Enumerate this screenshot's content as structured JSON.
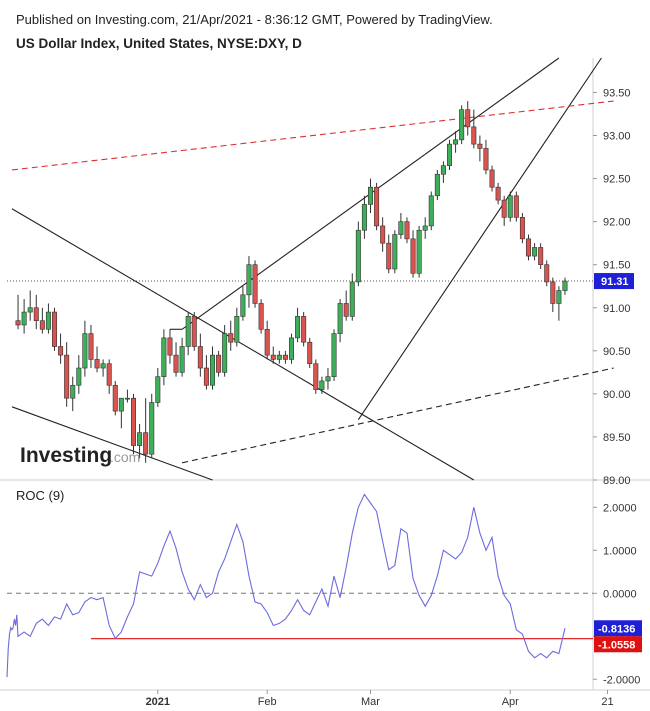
{
  "header": {
    "published": "Published on Investing.com, 21/Apr/2021 - 8:36:12 GMT, Powered by TradingView.",
    "title": "US Dollar Index, United States, NYSE:DXY, D"
  },
  "logo": {
    "main": "Investing",
    "suffix": ".com"
  },
  "colors": {
    "up": "#3fae5a",
    "down": "#d9534f",
    "roc": "#6b6be0",
    "trend": "#222222",
    "resistance": "#e03030",
    "last_label": "#1f1fd6",
    "roc_label_blue": "#1f1fd6",
    "roc_label_red": "#e01010"
  },
  "chart_data": [
    {
      "type": "candlestick",
      "title": "US Dollar Index, United States, NYSE:DXY, D",
      "ylim": [
        89.0,
        93.9
      ],
      "y_ticks": [
        "93.50",
        "93.00",
        "92.50",
        "92.00",
        "91.50",
        "91.00",
        "90.50",
        "90.00",
        "89.50",
        "89.00"
      ],
      "x_ticks": [
        "2021",
        "Feb",
        "Mar",
        "Apr",
        "21"
      ],
      "last_price": "91.31",
      "candles": [
        [
          90.85,
          91.15,
          90.75,
          90.8
        ],
        [
          90.8,
          91.1,
          90.7,
          90.95
        ],
        [
          90.95,
          91.2,
          90.85,
          91.0
        ],
        [
          91.0,
          91.15,
          90.75,
          90.85
        ],
        [
          90.85,
          91.0,
          90.7,
          90.75
        ],
        [
          90.75,
          91.05,
          90.7,
          90.95
        ],
        [
          90.95,
          91.0,
          90.5,
          90.55
        ],
        [
          90.55,
          90.7,
          90.35,
          90.45
        ],
        [
          90.45,
          90.6,
          89.85,
          89.95
        ],
        [
          89.95,
          90.2,
          89.8,
          90.1
        ],
        [
          90.1,
          90.45,
          90.0,
          90.3
        ],
        [
          90.3,
          90.85,
          90.2,
          90.7
        ],
        [
          90.7,
          90.8,
          90.3,
          90.4
        ],
        [
          90.4,
          90.55,
          90.25,
          90.3
        ],
        [
          90.3,
          90.4,
          90.2,
          90.35
        ],
        [
          90.35,
          90.4,
          90.0,
          90.1
        ],
        [
          90.1,
          90.15,
          89.75,
          89.8
        ],
        [
          89.8,
          89.95,
          89.6,
          89.95
        ],
        [
          89.95,
          90.05,
          89.9,
          89.95
        ],
        [
          89.95,
          90.0,
          89.3,
          89.4
        ],
        [
          89.4,
          89.65,
          89.25,
          89.55
        ],
        [
          89.55,
          89.95,
          89.2,
          89.3
        ],
        [
          89.3,
          90.0,
          89.25,
          89.9
        ],
        [
          89.9,
          90.3,
          89.85,
          90.2
        ],
        [
          90.2,
          90.75,
          90.1,
          90.65
        ],
        [
          90.65,
          90.75,
          90.35,
          90.45
        ],
        [
          90.45,
          90.6,
          90.2,
          90.25
        ],
        [
          90.25,
          90.65,
          90.2,
          90.55
        ],
        [
          90.55,
          90.95,
          90.45,
          90.9
        ],
        [
          90.9,
          90.95,
          90.5,
          90.55
        ],
        [
          90.55,
          90.7,
          90.2,
          90.3
        ],
        [
          90.3,
          90.45,
          90.05,
          90.1
        ],
        [
          90.1,
          90.55,
          90.05,
          90.45
        ],
        [
          90.45,
          90.5,
          90.2,
          90.25
        ],
        [
          90.25,
          90.8,
          90.2,
          90.7
        ],
        [
          90.7,
          90.85,
          90.5,
          90.6
        ],
        [
          90.6,
          91.0,
          90.55,
          90.9
        ],
        [
          90.9,
          91.25,
          90.85,
          91.15
        ],
        [
          91.15,
          91.6,
          91.0,
          91.5
        ],
        [
          91.5,
          91.55,
          91.0,
          91.05
        ],
        [
          91.05,
          91.1,
          90.7,
          90.75
        ],
        [
          90.75,
          90.85,
          90.4,
          90.45
        ],
        [
          90.45,
          90.55,
          90.35,
          90.4
        ],
        [
          90.4,
          90.5,
          90.35,
          90.45
        ],
        [
          90.45,
          90.5,
          90.35,
          90.4
        ],
        [
          90.4,
          90.7,
          90.35,
          90.65
        ],
        [
          90.65,
          91.0,
          90.6,
          90.9
        ],
        [
          90.9,
          90.95,
          90.55,
          90.6
        ],
        [
          90.6,
          90.65,
          90.3,
          90.35
        ],
        [
          90.35,
          90.4,
          90.0,
          90.05
        ],
        [
          90.05,
          90.2,
          90.0,
          90.15
        ],
        [
          90.15,
          90.3,
          90.05,
          90.2
        ],
        [
          90.2,
          90.75,
          90.15,
          90.7
        ],
        [
          90.7,
          91.1,
          90.6,
          91.05
        ],
        [
          91.05,
          91.2,
          90.85,
          90.9
        ],
        [
          90.9,
          91.4,
          90.85,
          91.3
        ],
        [
          91.3,
          92.0,
          91.25,
          91.9
        ],
        [
          91.9,
          92.3,
          91.8,
          92.2
        ],
        [
          92.2,
          92.5,
          92.1,
          92.4
        ],
        [
          92.4,
          92.45,
          91.9,
          91.95
        ],
        [
          91.95,
          92.05,
          91.65,
          91.75
        ],
        [
          91.75,
          91.85,
          91.4,
          91.45
        ],
        [
          91.45,
          91.9,
          91.4,
          91.85
        ],
        [
          91.85,
          92.1,
          91.8,
          92.0
        ],
        [
          92.0,
          92.05,
          91.75,
          91.8
        ],
        [
          91.8,
          91.9,
          91.35,
          91.4
        ],
        [
          91.4,
          91.95,
          91.35,
          91.9
        ],
        [
          91.9,
          92.05,
          91.8,
          91.95
        ],
        [
          91.95,
          92.35,
          91.9,
          92.3
        ],
        [
          92.3,
          92.6,
          92.25,
          92.55
        ],
        [
          92.55,
          92.7,
          92.45,
          92.65
        ],
        [
          92.65,
          92.95,
          92.6,
          92.9
        ],
        [
          92.9,
          93.05,
          92.8,
          92.95
        ],
        [
          92.95,
          93.35,
          92.9,
          93.3
        ],
        [
          93.3,
          93.4,
          93.0,
          93.1
        ],
        [
          93.1,
          93.3,
          92.85,
          92.9
        ],
        [
          92.9,
          93.0,
          92.7,
          92.85
        ],
        [
          92.85,
          92.95,
          92.55,
          92.6
        ],
        [
          92.6,
          92.65,
          92.35,
          92.4
        ],
        [
          92.4,
          92.45,
          92.2,
          92.25
        ],
        [
          92.25,
          92.3,
          91.95,
          92.05
        ],
        [
          92.05,
          92.35,
          92.0,
          92.3
        ],
        [
          92.3,
          92.35,
          92.0,
          92.05
        ],
        [
          92.05,
          92.1,
          91.75,
          91.8
        ],
        [
          91.8,
          91.85,
          91.55,
          91.6
        ],
        [
          91.6,
          91.75,
          91.55,
          91.7
        ],
        [
          91.7,
          91.75,
          91.45,
          91.5
        ],
        [
          91.5,
          91.55,
          91.25,
          91.3
        ],
        [
          91.3,
          91.35,
          90.95,
          91.05
        ],
        [
          91.05,
          91.25,
          90.85,
          91.2
        ],
        [
          91.2,
          91.35,
          91.15,
          91.31
        ]
      ],
      "trendlines": [
        {
          "name": "upper-channel-line",
          "style": "solid",
          "points": [
            [
              27,
              90.75
            ],
            [
              89,
              93.9
            ]
          ]
        },
        {
          "name": "lower-channel-line",
          "style": "dashed",
          "points": [
            [
              27,
              89.2
            ],
            [
              98,
              90.3
            ]
          ]
        },
        {
          "name": "steep-support-line",
          "style": "solid",
          "points": [
            [
              56,
              89.7
            ],
            [
              96,
              93.9
            ]
          ]
        },
        {
          "name": "falling-line",
          "style": "solid",
          "points": [
            [
              -1,
              92.15
            ],
            [
              75,
              89.0
            ]
          ]
        },
        {
          "name": "lower-left-line",
          "style": "solid",
          "points": [
            [
              -1,
              89.85
            ],
            [
              32,
              89.0
            ]
          ]
        },
        {
          "name": "short-connector",
          "style": "solid",
          "points": [
            [
              25,
              90.75
            ],
            [
              27,
              90.75
            ]
          ]
        },
        {
          "name": "resistance-line",
          "style": "dashed-red",
          "points": [
            [
              -1,
              92.6
            ],
            [
              98,
              93.4
            ]
          ]
        }
      ]
    },
    {
      "type": "line",
      "title": "ROC (9)",
      "ylim": [
        -2.25,
        2.45
      ],
      "y_ticks": [
        "2.0000",
        "1.0000",
        "0.0000",
        "-1.0000",
        "-2.0000"
      ],
      "last_value": "-0.8136",
      "level_value": "-1.0558",
      "zero_line": 0.0,
      "values": [
        -1.95,
        -1.3,
        -0.95,
        -0.8,
        -0.85,
        -0.8,
        -0.6,
        -0.75,
        -0.5,
        -1.0,
        -0.9,
        -1.0,
        -0.7,
        -0.6,
        -0.75,
        -0.55,
        -0.6,
        -0.25,
        -0.5,
        -0.45,
        -0.2,
        -0.1,
        -0.15,
        -0.1,
        -0.75,
        -1.05,
        -0.9,
        -0.55,
        -0.25,
        0.5,
        0.45,
        0.4,
        0.7,
        1.1,
        1.45,
        1.05,
        0.5,
        0.1,
        -0.15,
        0.2,
        -0.1,
        0.0,
        0.5,
        0.8,
        1.2,
        1.6,
        1.2,
        0.4,
        -0.2,
        -0.25,
        -0.45,
        -0.75,
        -0.7,
        -0.6,
        -0.4,
        -0.15,
        -0.4,
        -0.5,
        -0.2,
        0.1,
        -0.3,
        0.4,
        -0.1,
        0.6,
        1.4,
        2.0,
        2.3,
        2.1,
        1.9,
        1.2,
        0.55,
        0.65,
        1.5,
        1.4,
        0.35,
        -0.05,
        -0.3,
        -0.05,
        0.4,
        1.0,
        0.9,
        0.8,
        0.95,
        1.3,
        2.0,
        1.4,
        1.0,
        1.3,
        0.4,
        -0.05,
        -0.25,
        -0.85,
        -0.95,
        -1.35,
        -1.5,
        -1.4,
        -1.5,
        -1.35,
        -1.4,
        -0.8136
      ]
    }
  ]
}
